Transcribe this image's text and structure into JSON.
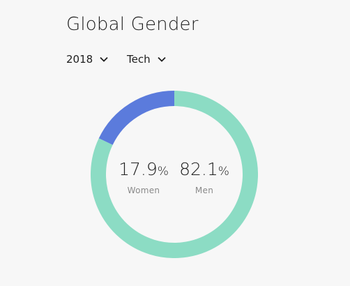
{
  "title": "Global Gender",
  "filters": {
    "year": "2018",
    "sector": "Tech"
  },
  "icons": {
    "dropdown": "chevron-down-icon"
  },
  "colors": {
    "women": "#5b7bdc",
    "men": "#8cdcc4",
    "background": "#f7f7f7"
  },
  "chart_data": {
    "type": "pie",
    "title": "",
    "categories": [
      "Women",
      "Men"
    ],
    "values": [
      17.9,
      82.1
    ],
    "unit": "%"
  },
  "stats": [
    {
      "value": "17.9",
      "unit": "%",
      "label": "Women"
    },
    {
      "value": "82.1",
      "unit": "%",
      "label": "Men"
    }
  ]
}
